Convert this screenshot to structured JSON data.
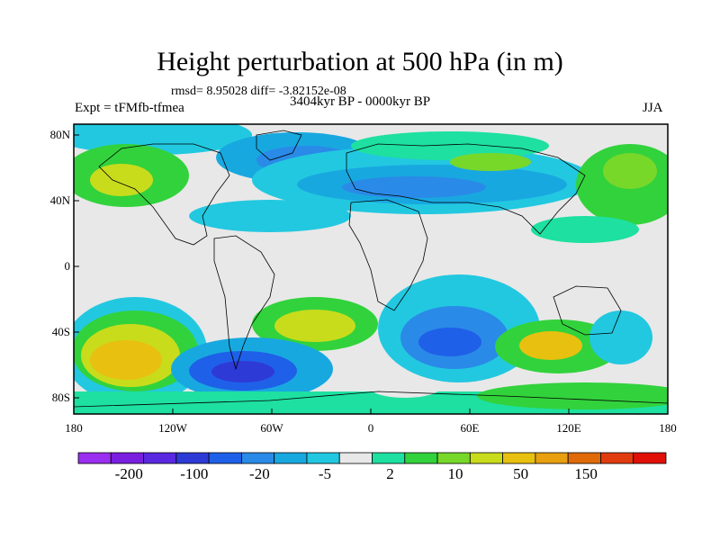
{
  "title": "Height perturbation at 500 hPa (in m)",
  "stats": "rmsd= 8.95028 diff= -3.82152e-08",
  "experiment": "Expt = tFMfb-tfmea",
  "period": "3404kyr BP - 0000kyr BP",
  "season": "JJA",
  "lat_ticks": [
    "80N",
    "40N",
    "0",
    "40S",
    "80S"
  ],
  "lon_ticks": [
    "180",
    "120W",
    "60W",
    "0",
    "60E",
    "120E",
    "180"
  ],
  "colorbar": {
    "colors": [
      "#9a2ff0",
      "#7a1fe0",
      "#5a28e0",
      "#2e3ad6",
      "#1f60e8",
      "#2a8ae8",
      "#18a8e0",
      "#22c8e0",
      "#e8e8e8",
      "#1ee0a0",
      "#32d23c",
      "#78d82a",
      "#c8dc1c",
      "#e8c010",
      "#e8a010",
      "#e06a08",
      "#e03c10",
      "#e01008"
    ],
    "labels": [
      "-200",
      "-100",
      "-20",
      "-5",
      "2",
      "10",
      "50",
      "150"
    ]
  }
}
